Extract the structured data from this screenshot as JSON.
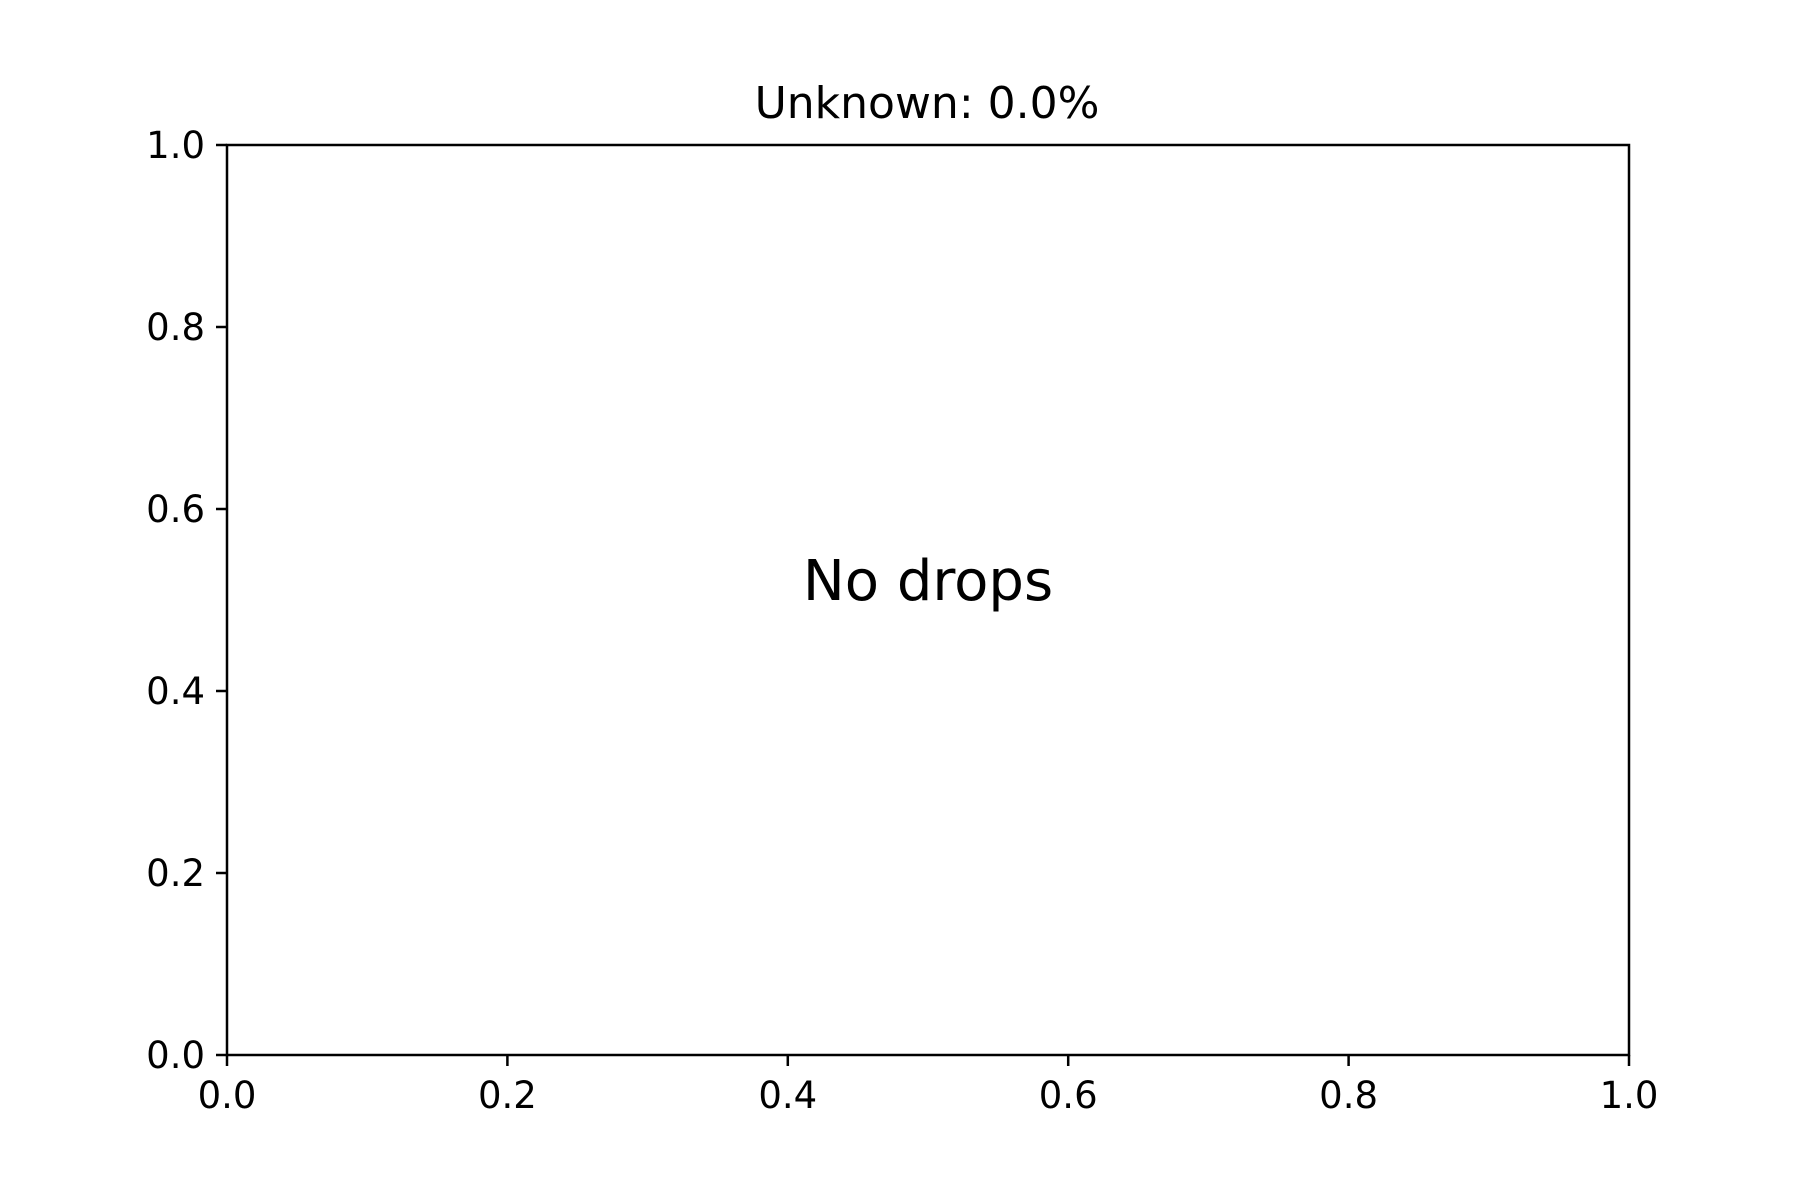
{
  "chart_data": {
    "type": "scatter",
    "title": "Unknown: 0.0%",
    "xlabel": "",
    "ylabel": "",
    "xlim": [
      0.0,
      1.0
    ],
    "ylim": [
      0.0,
      1.0
    ],
    "xticks": [
      0.0,
      0.2,
      0.4,
      0.6,
      0.8,
      1.0
    ],
    "yticks": [
      0.0,
      0.2,
      0.4,
      0.6,
      0.8,
      1.0
    ],
    "xtick_labels": [
      "0.0",
      "0.2",
      "0.4",
      "0.6",
      "0.8",
      "1.0"
    ],
    "ytick_labels": [
      "0.0",
      "0.2",
      "0.4",
      "0.6",
      "0.8",
      "1.0"
    ],
    "series": [],
    "annotation": "No drops",
    "grid": false
  }
}
